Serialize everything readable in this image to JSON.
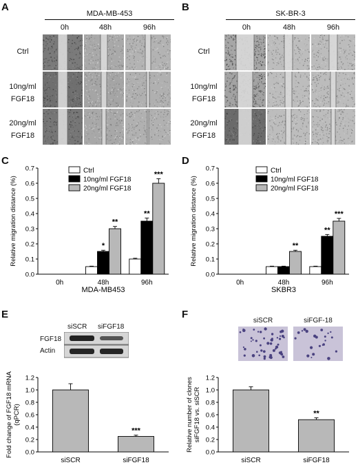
{
  "panels": {
    "A": {
      "letter": "A",
      "cell_line": "MDA-MB-453",
      "timepoints": [
        "0h",
        "48h",
        "96h"
      ],
      "rows": [
        {
          "line1": "Ctrl",
          "line2": ""
        },
        {
          "line1": "10ng/ml",
          "line2": "FGF18"
        },
        {
          "line1": "20ng/ml",
          "line2": "FGF18"
        }
      ]
    },
    "B": {
      "letter": "B",
      "cell_line": "SK-BR-3",
      "timepoints": [
        "0h",
        "48h",
        "96h"
      ],
      "rows": [
        {
          "line1": "Ctrl",
          "line2": ""
        },
        {
          "line1": "10ng/ml",
          "line2": "FGF18"
        },
        {
          "line1": "20ng/ml",
          "line2": "FGF18"
        }
      ]
    },
    "C": {
      "letter": "C"
    },
    "D": {
      "letter": "D"
    },
    "E": {
      "letter": "E",
      "blot_lanes": [
        "siSCR",
        "siFGF18"
      ],
      "blot_rows": [
        "FGF18",
        "Actin"
      ]
    },
    "F": {
      "letter": "F",
      "image_labels": [
        "siSCR",
        "siFGF-18"
      ]
    }
  },
  "chart_data": [
    {
      "id": "C",
      "type": "bar",
      "categories": [
        "0h",
        "48h",
        "96h"
      ],
      "series": [
        {
          "name": "Ctrl",
          "values": [
            0,
            0.05,
            0.1
          ],
          "errors": [
            0,
            0.003,
            0.005
          ],
          "color": "#ffffff"
        },
        {
          "name": "10ng/ml FGF18",
          "values": [
            0,
            0.15,
            0.35
          ],
          "errors": [
            0,
            0.008,
            0.02
          ],
          "color": "#000000"
        },
        {
          "name": "20ng/ml FGF18",
          "values": [
            0,
            0.3,
            0.6
          ],
          "errors": [
            0,
            0.015,
            0.03
          ],
          "color": "#b8b8b8"
        }
      ],
      "annotations": [
        {
          "category": 1,
          "series": 1,
          "text": "*"
        },
        {
          "category": 1,
          "series": 2,
          "text": "**"
        },
        {
          "category": 2,
          "series": 1,
          "text": "**"
        },
        {
          "category": 2,
          "series": 2,
          "text": "***"
        }
      ],
      "ylabel": "Relative migration distance (%)",
      "xlabel": "MDA-MB453",
      "ylim": [
        0,
        0.7
      ],
      "yticks": [
        "0.0",
        "0.1",
        "0.2",
        "0.3",
        "0.4",
        "0.5",
        "0.6",
        "0.7"
      ],
      "grid": false,
      "legend": "top-left"
    },
    {
      "id": "D",
      "type": "bar",
      "categories": [
        "0h",
        "48h",
        "96h"
      ],
      "series": [
        {
          "name": "Ctrl",
          "values": [
            0,
            0.05,
            0.05
          ],
          "errors": [
            0,
            0.003,
            0.003
          ],
          "color": "#ffffff"
        },
        {
          "name": "10ng/ml FGF18",
          "values": [
            0,
            0.05,
            0.25
          ],
          "errors": [
            0,
            0.003,
            0.012
          ],
          "color": "#000000"
        },
        {
          "name": "20ng/ml FGF18",
          "values": [
            0,
            0.15,
            0.35
          ],
          "errors": [
            0,
            0.008,
            0.018
          ],
          "color": "#b8b8b8"
        }
      ],
      "annotations": [
        {
          "category": 1,
          "series": 2,
          "text": "**"
        },
        {
          "category": 2,
          "series": 1,
          "text": "**"
        },
        {
          "category": 2,
          "series": 2,
          "text": "***"
        }
      ],
      "ylabel": "Relative migration distance (%)",
      "xlabel": "SKBR3",
      "ylim": [
        0,
        0.7
      ],
      "yticks": [
        "0.0",
        "0.1",
        "0.2",
        "0.3",
        "0.4",
        "0.5",
        "0.6",
        "0.7"
      ],
      "grid": false,
      "legend": "top-left"
    },
    {
      "id": "E",
      "type": "bar",
      "categories": [
        "siSCR",
        "siFGF18"
      ],
      "series": [
        {
          "values": [
            1.0,
            0.25
          ],
          "errors": [
            0.1,
            0.02
          ],
          "color": "#b8b8b8"
        }
      ],
      "annotations": [
        {
          "category": 1,
          "series": 0,
          "text": "***"
        }
      ],
      "ylabel": "Fold change of FGF18 mRNA (qPCR)",
      "xlabel": "",
      "ylim": [
        0,
        1.2
      ],
      "yticks": [
        "0.0",
        "0.2",
        "0.4",
        "0.6",
        "0.8",
        "1.0",
        "1.2"
      ],
      "grid": false
    },
    {
      "id": "F",
      "type": "bar",
      "categories": [
        "siSCR",
        "siFGF18"
      ],
      "series": [
        {
          "values": [
            1.0,
            0.52
          ],
          "errors": [
            0.05,
            0.03
          ],
          "color": "#b8b8b8"
        }
      ],
      "annotations": [
        {
          "category": 1,
          "series": 0,
          "text": "**"
        }
      ],
      "ylabel": "Relative number of clones siFGF18 vs. siSCR",
      "xlabel": "",
      "ylim": [
        0,
        1.2
      ],
      "yticks": [
        "0.0",
        "0.2",
        "0.4",
        "0.6",
        "0.8",
        "1.0",
        "1.2"
      ],
      "grid": false
    }
  ]
}
